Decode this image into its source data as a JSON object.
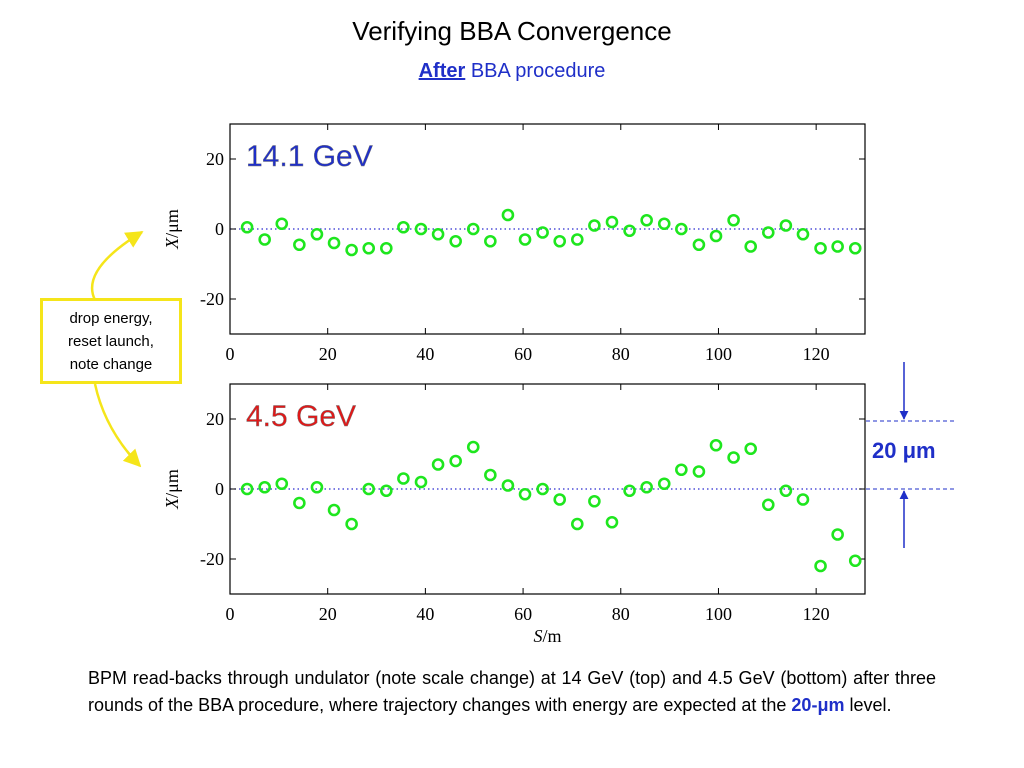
{
  "title": "Verifying BBA Convergence",
  "subtitle": {
    "emphasis": "After",
    "rest": " BBA procedure"
  },
  "callout": {
    "lines": [
      "drop energy,",
      "reset launch,",
      "note change"
    ]
  },
  "scale_bar": {
    "label_value": "20 ",
    "label_unit": "μm",
    "color": "#1f2fc8"
  },
  "caption": {
    "text": "BPM read-backs through undulator (note scale change) at 14 GeV (top) and 4.5 GeV (bottom) after three rounds of the BBA procedure, where trajectory changes with energy are expected at the ",
    "highlight": "20-μm",
    "tail": " level."
  },
  "colors": {
    "marker": "#1ee61e",
    "zero_line": "#2b2bd0",
    "callout_border": "#f5e51a",
    "label_top": "#1f2fc8",
    "label_bottom": "#e01818"
  },
  "chart_data": [
    {
      "type": "scatter",
      "label": "14.1 GeV",
      "label_color": "#1f2fc8",
      "ylabel": "X/μm",
      "xlim": [
        0,
        130
      ],
      "ylim": [
        -30,
        30
      ],
      "xticks": [
        0,
        20,
        40,
        60,
        80,
        100,
        120
      ],
      "yticks": [
        20,
        0,
        -20
      ],
      "x": [
        3.5,
        7.1,
        10.6,
        14.2,
        17.8,
        21.3,
        24.9,
        28.4,
        32.0,
        35.5,
        39.1,
        42.6,
        46.2,
        49.8,
        53.3,
        56.9,
        60.4,
        64.0,
        67.5,
        71.1,
        74.6,
        78.2,
        81.8,
        85.3,
        88.9,
        92.4,
        96.0,
        99.5,
        103.1,
        106.6,
        110.2,
        113.8,
        117.3,
        120.9,
        124.4,
        128.0
      ],
      "y": [
        0.5,
        -3,
        1.5,
        -4.5,
        -1.5,
        -4,
        -6,
        -5.5,
        -5.5,
        0.5,
        0,
        -1.5,
        -3.5,
        0,
        -3.5,
        4,
        -3,
        -1,
        -3.5,
        -3,
        1,
        2,
        -0.5,
        2.5,
        1.5,
        0,
        -4.5,
        -2,
        2.5,
        -5,
        -1,
        1,
        -1.5,
        -5.5,
        -5,
        -5.5
      ]
    },
    {
      "type": "scatter",
      "label": "4.5 GeV",
      "label_color": "#e01818",
      "ylabel": "X/μm",
      "xlabel": "S/m",
      "xlim": [
        0,
        130
      ],
      "ylim": [
        -30,
        30
      ],
      "xticks": [
        0,
        20,
        40,
        60,
        80,
        100,
        120
      ],
      "yticks": [
        20,
        0,
        -20
      ],
      "x": [
        3.5,
        7.1,
        10.6,
        14.2,
        17.8,
        21.3,
        24.9,
        28.4,
        32.0,
        35.5,
        39.1,
        42.6,
        46.2,
        49.8,
        53.3,
        56.9,
        60.4,
        64.0,
        67.5,
        71.1,
        74.6,
        78.2,
        81.8,
        85.3,
        88.9,
        92.4,
        96.0,
        99.5,
        103.1,
        106.6,
        110.2,
        113.8,
        117.3,
        120.9,
        124.4,
        128.0
      ],
      "y": [
        0,
        0.5,
        1.5,
        -4,
        0.5,
        -6,
        -10,
        0,
        -0.5,
        3,
        2,
        7,
        8,
        12,
        4,
        1,
        -1.5,
        0,
        -3,
        -10,
        -3.5,
        -9.5,
        -0.5,
        0.5,
        1.5,
        5.5,
        5,
        12.5,
        9,
        11.5,
        -4.5,
        -0.5,
        -3,
        -22,
        -13,
        -20.5
      ]
    }
  ]
}
